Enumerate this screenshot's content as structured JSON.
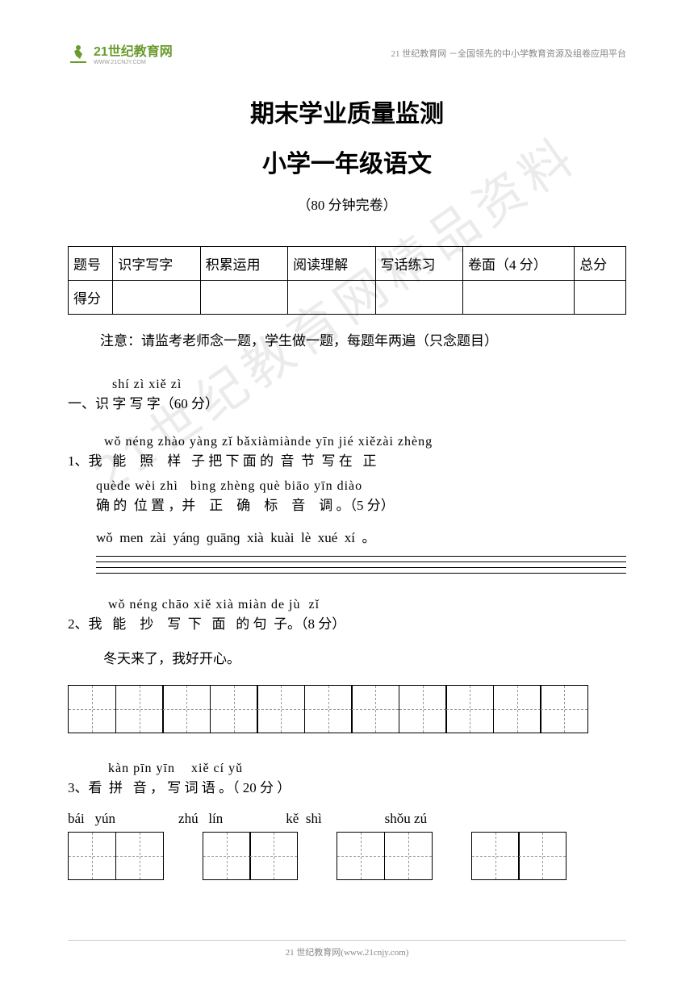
{
  "header": {
    "logo_main": "21世纪教育网",
    "logo_sub": "WWW.21CNJY.COM",
    "right_text": "21 世纪教育网 －全国领先的中小学教育资源及组卷应用平台"
  },
  "watermark": "21世纪教育网精品资料",
  "titles": {
    "line1": "期末学业质量监测",
    "line2": "小学一年级语文",
    "subtitle": "（80 分钟完卷）"
  },
  "score_table": {
    "row1": [
      "题号",
      "识字写字",
      "积累运用",
      "阅读理解",
      "写话练习",
      "卷面（4 分）",
      "总分"
    ],
    "row2_label": "得分"
  },
  "note": "注意：请监考老师念一题，学生做一题，每题年两遍（只念题目）",
  "section1": {
    "pinyin": "    shí zì xiě zì",
    "chinese": "一、识 字 写 字（60 分）"
  },
  "q1": {
    "pinyin1": "  wǒ néng zhào yàng zǐ bǎxiàmiànde yīn jié xiězài zhèng",
    "chinese1": "1、我   能    照    样   子 把 下 面 的  音  节  写 在   正",
    "pinyin2": "quède wèi zhì   bìng zhèng què biāo yīn diào",
    "chinese2": "确 的  位 置 ，并    正    确    标    音    调 。（5 分）",
    "sentence": "wǒ  men  zài  yánɡ  ɡuānɡ  xià  kuài  lè  xué  xí  。"
  },
  "q2": {
    "pinyin": "   wǒ néng chāo xiě xià miàn de jù  zǐ",
    "chinese": "2、我   能    抄    写  下   面   的 句  子。（8 分）",
    "sentence": "冬天来了，我好开心。",
    "box_count": 11
  },
  "q3": {
    "pinyin": "   kàn pīn yīn    xiě cí yǔ",
    "chinese": "3、看  拼   音 ， 写 词 语 。（ 20 分 ）",
    "words": [
      "bái   yún",
      "zhú   lín",
      "kě  shì",
      "shǒu zú"
    ]
  },
  "footer": "21 世纪教育网(www.21cnjy.com)"
}
